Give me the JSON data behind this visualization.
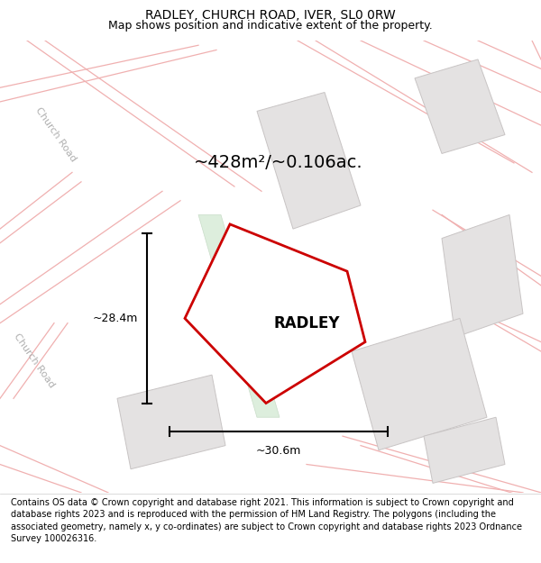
{
  "title": "RADLEY, CHURCH ROAD, IVER, SL0 0RW",
  "subtitle": "Map shows position and indicative extent of the property.",
  "footer": "Contains OS data © Crown copyright and database right 2021. This information is subject to Crown copyright and database rights 2023 and is reproduced with the permission of HM Land Registry. The polygons (including the associated geometry, namely x, y co-ordinates) are subject to Crown copyright and database rights 2023 Ordnance Survey 100026316.",
  "property_label": "RADLEY",
  "area_label": "~428m²/~0.106ac.",
  "width_label": "~30.6m",
  "height_label": "~28.4m",
  "map_bg": "#f2f0f0",
  "property_fill": "#ffffff",
  "property_edge": "#cc0000",
  "road_color_light": "#f0b0b0",
  "building_fill": "#e4e2e2",
  "building_edge": "#c8c4c4",
  "road_label_color": "#b0b0b0",
  "green_path_fill": "#ddeedd",
  "title_fontsize": 10,
  "subtitle_fontsize": 9,
  "footer_fontsize": 7,
  "label_fontsize": 9,
  "area_fontsize": 14,
  "property_label_fontsize": 12
}
